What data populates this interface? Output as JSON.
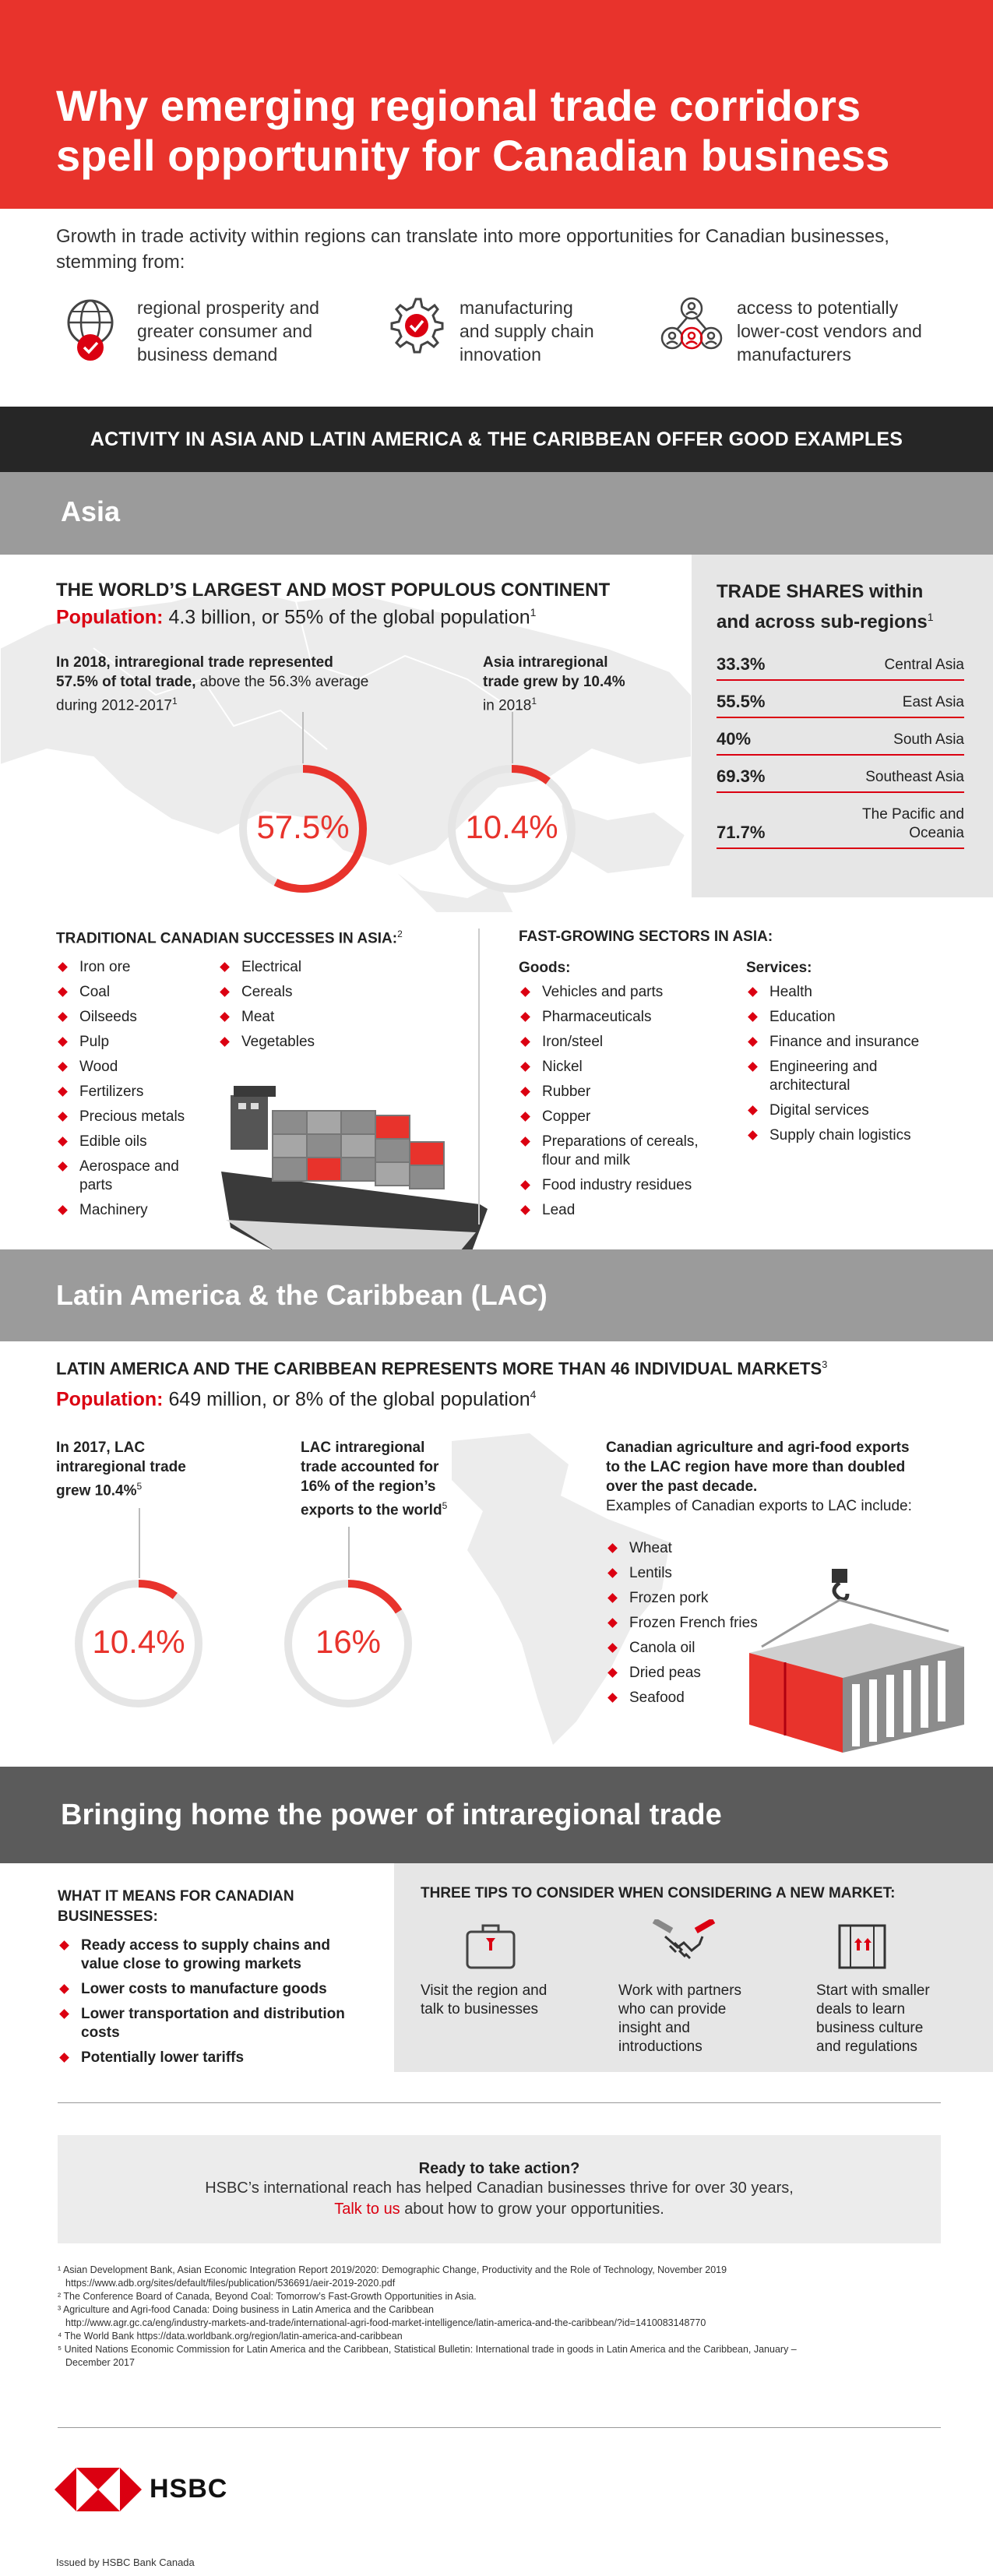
{
  "header": {
    "title_line1": "Why emerging regional trade corridors",
    "title_line2": "spell opportunity for Canadian business"
  },
  "intro": {
    "text": "Growth in trade activity within regions can translate into more opportunities for Canadian businesses, stemming from:"
  },
  "benefits": [
    {
      "icon": "globe-check-icon",
      "line1": "regional prosperity and",
      "line2": "greater consumer and",
      "line3": "business demand"
    },
    {
      "icon": "gear-check-icon",
      "line1": "manufacturing",
      "line2": "and supply chain",
      "line3": "innovation"
    },
    {
      "icon": "people-network-icon",
      "line1": "access to potentially",
      "line2": "lower-cost vendors and",
      "line3": "manufacturers"
    }
  ],
  "activity_band": "ACTIVITY IN ASIA AND LATIN AMERICA & THE CARIBBEAN OFFER GOOD EXAMPLES",
  "asia": {
    "band": "Asia",
    "heading": "THE WORLD’S LARGEST AND MOST POPULOUS CONTINENT",
    "pop_label": "Population:",
    "pop_value": "4.3 billion, or 55% of the global population",
    "pop_note": "1",
    "stat1": {
      "bold1": "In 2018, intraregional trade represented",
      "bold2": "57.5% of total trade,",
      "rest2": " above the 56.3% average",
      "line3": "during 2012-2017",
      "note": "1",
      "value": "57.5%",
      "fraction": 0.575
    },
    "stat2": {
      "bold1": "Asia intraregional",
      "bold2": "trade grew by 10.4%",
      "line3": "in 2018",
      "note": "1",
      "value": "10.4%",
      "fraction": 0.104
    },
    "trade": {
      "title1": "TRADE SHARES within",
      "title2": "and across sub-regions",
      "note": "1",
      "rows": [
        {
          "value": "33.3%",
          "region": "Central Asia",
          "region2": ""
        },
        {
          "value": "55.5%",
          "region": "East Asia",
          "region2": ""
        },
        {
          "value": "40%",
          "region": "South Asia",
          "region2": ""
        },
        {
          "value": "69.3%",
          "region": "Southeast Asia",
          "region2": ""
        },
        {
          "value": "71.7%",
          "region": "The Pacific and",
          "region2": "Oceania"
        }
      ]
    },
    "traditional": {
      "title": "TRADITIONAL CANADIAN SUCCESSES IN ASIA:",
      "note": "2",
      "col1": [
        "Iron ore",
        "Coal",
        "Oilseeds",
        "Pulp",
        "Wood",
        "Fertilizers",
        "Precious metals",
        "Edible oils",
        "Aerospace and parts",
        "Machinery"
      ],
      "col2": [
        "Electrical",
        "Cereals",
        "Meat",
        "Vegetables"
      ]
    },
    "fast": {
      "title": "FAST-GROWING SECTORS IN ASIA:",
      "goods_label": "Goods:",
      "services_label": "Services:",
      "goods": [
        "Vehicles and parts",
        "Pharmaceuticals",
        "Iron/steel",
        "Nickel",
        "Rubber",
        "Copper",
        "Preparations of cereals, flour and milk",
        "Food industry residues",
        "Lead"
      ],
      "services": [
        "Health",
        "Education",
        "Finance and insurance",
        "Engineering and architectural",
        "Digital services",
        "Supply chain logistics"
      ]
    }
  },
  "lac": {
    "band": "Latin America & the Caribbean (LAC)",
    "heading": "LATIN AMERICA AND THE CARIBBEAN REPRESENTS MORE THAN 46 INDIVIDUAL MARKETS",
    "heading_note": "3",
    "pop_label": "Population:",
    "pop_value": "649 million, or 8% of the global population",
    "pop_note": "4",
    "stat1": {
      "line1": "In 2017, LAC",
      "line2": "intraregional trade",
      "line3": "grew 10.4%",
      "note": "5",
      "value": "10.4%",
      "fraction": 0.104
    },
    "stat2": {
      "line1": "LAC intraregional",
      "line2": "trade accounted for",
      "line3": "16% of the region’s",
      "line4": "exports to the world",
      "note": "5",
      "value": "16%",
      "fraction": 0.16
    },
    "agri": {
      "bold1": "Canadian agriculture and agri-food exports",
      "bold2": "to the LAC region have more than doubled",
      "bold3": "over the past decade.",
      "normal": "Examples of Canadian exports to LAC include:"
    },
    "exports": [
      "Wheat",
      "Lentils",
      "Frozen pork",
      "Frozen French fries",
      "Canola oil",
      "Dried peas",
      "Seafood"
    ]
  },
  "bringing": {
    "band": "Bringing home the power of intraregional trade",
    "means_title1": "WHAT IT MEANS FOR CANADIAN",
    "means_title2": "BUSINESSES:",
    "means": [
      "Ready access to supply chains and value close to growing markets",
      "Lower costs to manufacture goods",
      "Lower transportation and distribution costs",
      "Potentially lower tariffs"
    ],
    "tips_title": "THREE TIPS TO CONSIDER WHEN CONSIDERING A NEW MARKET:",
    "tips": [
      {
        "icon": "suitcase-icon",
        "l1": "Visit the region and",
        "l2": "talk to businesses",
        "l3": "",
        "l4": ""
      },
      {
        "icon": "handshake-icon",
        "l1": "Work with partners",
        "l2": "who can provide",
        "l3": "insight and",
        "l4": "introductions"
      },
      {
        "icon": "box-arrows-icon",
        "l1": "Start with smaller",
        "l2": "deals to learn",
        "l3": "business culture",
        "l4": "and regulations"
      }
    ]
  },
  "cta": {
    "title": "Ready to take action?",
    "line2": "HSBC’s international reach has helped Canadian businesses thrive for over 30 years,",
    "link": "Talk to us",
    "line3": " about how to grow your opportunities."
  },
  "footnotes": [
    "¹ Asian Development Bank, Asian Economic Integration Report 2019/2020: Demographic Change, Productivity and the Role of Technology, November 2019",
    "   https://www.adb.org/sites/default/files/publication/536691/aeir-2019-2020.pdf",
    "² The Conference Board of Canada, Beyond Coal: Tomorrow’s Fast-Growth Opportunities in Asia.",
    "³ Agriculture and Agri-food Canada: Doing business in Latin America and the Caribbean",
    "   http://www.agr.gc.ca/eng/industry-markets-and-trade/international-agri-food-market-intelligence/latin-america-and-the-caribbean/?id=1410083148770",
    "⁴ The World Bank https://data.worldbank.org/region/latin-america-and-caribbean",
    "⁵ United Nations Economic Commission for Latin America and the Caribbean, Statistical Bulletin: International trade in goods in Latin America and the Caribbean, January –",
    "   December 2017"
  ],
  "brand": {
    "name": "HSBC",
    "issued": "Issued by HSBC Bank Canada"
  },
  "colors": {
    "red": "#db0011",
    "hero": "#e8332c",
    "dark": "#262626",
    "grey": "#9b9b9b"
  }
}
